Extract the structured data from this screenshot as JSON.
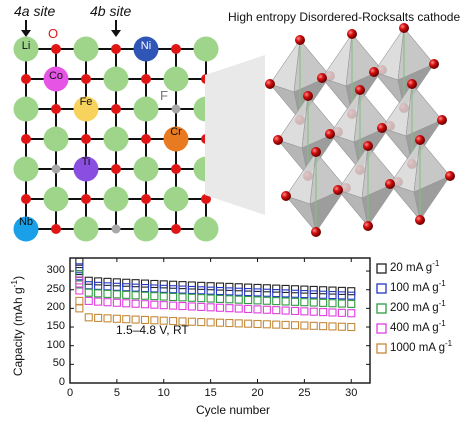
{
  "panel_top": {
    "site_4a": "4a site",
    "site_4b": "4b site",
    "oxygen_label": "O",
    "fluorine_label": "F",
    "structure_title": "High entropy Disordered-Rocksalts cathode",
    "atoms": [
      "Li",
      "Ni",
      "Co",
      "Fe",
      "Cr",
      "Ti",
      "Nb"
    ],
    "colors": {
      "lattice_green": "#9fd58b",
      "oxygen_red": "#e01515",
      "fluorine_gray": "#a8a8a8",
      "Li": "#9fd58b",
      "Ni": "#2f55b6",
      "Co": "#e654e6",
      "Fe": "#f7d35e",
      "Cr": "#e87b22",
      "Ti": "#8a4fe0",
      "Nb": "#1aa0e8"
    }
  },
  "chart_data": {
    "type": "scatter",
    "xlabel": "Cycle number",
    "ylabel": "Capacity (mAh g",
    "ylabel_sup": "-1",
    "ylabel_tail": ")",
    "annotation": "1.5–4.8 V, RT",
    "xlim": [
      0,
      32
    ],
    "ylim": [
      0,
      335
    ],
    "xticks": [
      0,
      5,
      10,
      15,
      20,
      25,
      30
    ],
    "yticks": [
      0,
      50,
      100,
      150,
      200,
      250,
      300
    ],
    "marker": "open-square",
    "series": [
      {
        "name": "20 mA g",
        "sup": "-1",
        "color": "#222222",
        "first": [
          325,
          300
        ],
        "start": 274,
        "end": 246
      },
      {
        "name": "100 mA g",
        "sup": "-1",
        "color": "#2436c4",
        "first": [
          310,
          286
        ],
        "start": 262,
        "end": 234
      },
      {
        "name": "200 mA g",
        "sup": "-1",
        "color": "#2e9a3e",
        "first": [
          292,
          264
        ],
        "start": 242,
        "end": 212
      },
      {
        "name": "400 mA g",
        "sup": "-1",
        "color": "#e23ee0",
        "first": [
          275,
          248
        ],
        "start": 220,
        "end": 187
      },
      {
        "name": "1000 mA g",
        "sup": "-1",
        "color": "#c48a3a",
        "first": [
          220,
          200
        ],
        "start": 176,
        "end": 150
      }
    ]
  }
}
